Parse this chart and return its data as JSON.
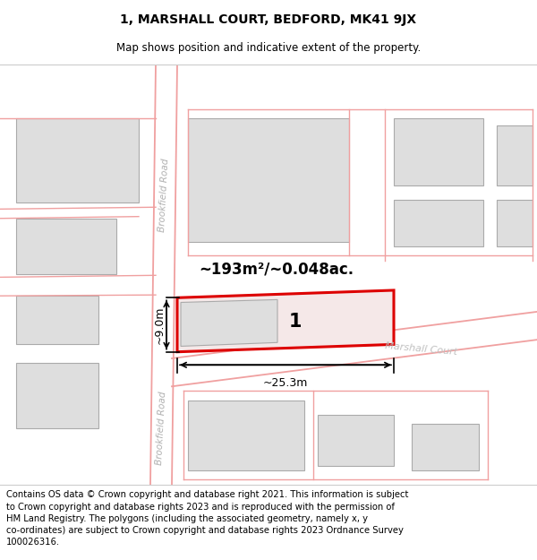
{
  "title": "1, MARSHALL COURT, BEDFORD, MK41 9JX",
  "subtitle": "Map shows position and indicative extent of the property.",
  "footer": "Contains OS data © Crown copyright and database right 2021. This information is subject\nto Crown copyright and database rights 2023 and is reproduced with the permission of\nHM Land Registry. The polygons (including the associated geometry, namely x, y\nco-ordinates) are subject to Crown copyright and database rights 2023 Ordnance Survey\n100026316.",
  "area_label": "~193m²/~0.048ac.",
  "width_label": "~25.3m",
  "height_label": "~9.0m",
  "number_label": "1",
  "road_label_1": "Brookfield Road",
  "road_label_2": "Brookfield Road",
  "road_label_3": "Marshall Court",
  "building_fill": "#dedede",
  "building_edge": "#aaaaaa",
  "road_line_color": "#f0a0a0",
  "highlight_fill": "#f5e8e8",
  "highlight_edge": "#dd0000",
  "title_fontsize": 10,
  "subtitle_fontsize": 8.5,
  "footer_fontsize": 7.2
}
